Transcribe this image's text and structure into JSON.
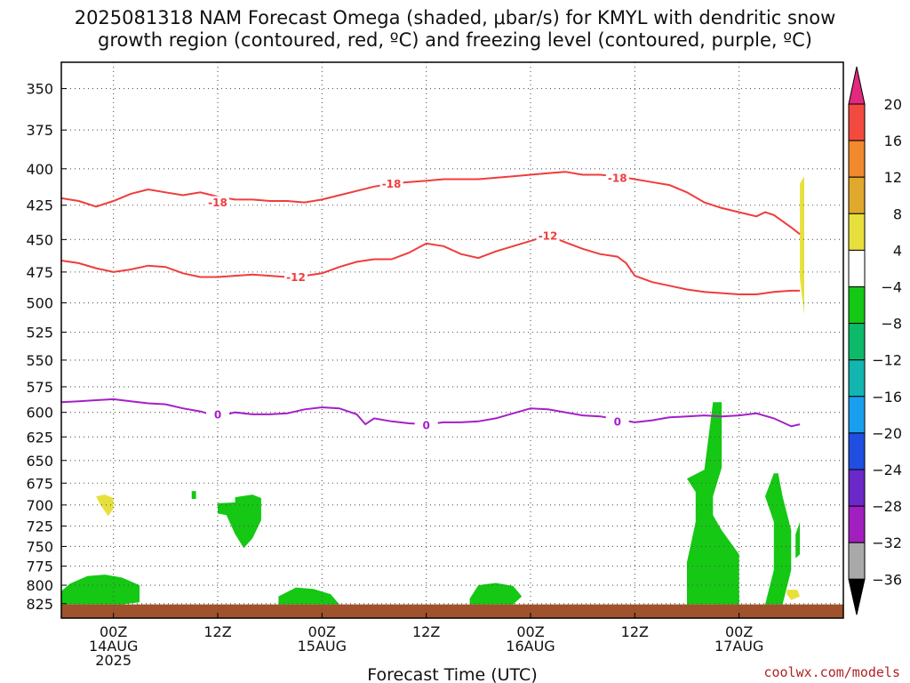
{
  "title": {
    "line1": "2025081318 NAM Forecast Omega (shaded, μbar/s) for KMYL with dendritic snow",
    "line2": "growth region (contoured, red, ºC) and freezing level (contoured, purple, ºC)"
  },
  "chart_data": {
    "type": "time-height",
    "xlabel": "Forecast Time (UTC)",
    "credit": "coolwx.com/models",
    "y_axis": {
      "scale": "log-pressure",
      "inverted": true,
      "ylim": [
        335,
        845
      ],
      "ticks": [
        350,
        375,
        400,
        425,
        450,
        475,
        500,
        525,
        550,
        575,
        600,
        625,
        650,
        675,
        700,
        725,
        750,
        775,
        800,
        825
      ],
      "tick_labels": [
        "350",
        "375",
        "400",
        "425",
        "450",
        "475",
        "500",
        "525",
        "550",
        "575",
        "600",
        "625",
        "650",
        "675",
        "700",
        "725",
        "750",
        "775",
        "800",
        "825"
      ]
    },
    "x_axis": {
      "unit": "forecast hour",
      "xlim": [
        -6,
        84
      ],
      "ticks": [
        {
          "hour": 0,
          "lines": [
            "00Z",
            "14AUG",
            "2025"
          ]
        },
        {
          "hour": 12,
          "lines": [
            "12Z"
          ]
        },
        {
          "hour": 24,
          "lines": [
            "00Z",
            "15AUG"
          ]
        },
        {
          "hour": 36,
          "lines": [
            "12Z"
          ]
        },
        {
          "hour": 48,
          "lines": [
            "00Z",
            "16AUG"
          ]
        },
        {
          "hour": 60,
          "lines": [
            "12Z"
          ]
        },
        {
          "hour": 72,
          "lines": [
            "00Z",
            "17AUG"
          ]
        }
      ]
    },
    "grid": true,
    "colorbar": {
      "levels": [
        20,
        16,
        12,
        8,
        4,
        -4,
        -8,
        -12,
        -16,
        -20,
        -24,
        -28,
        -32,
        -36
      ],
      "labels": [
        "20",
        "16",
        "12",
        "8",
        "4",
        "−4",
        "−8",
        "−12",
        "−16",
        "−20",
        "−24",
        "−28",
        "−32",
        "−36"
      ],
      "colors": [
        "#e3287f",
        "#f24a3f",
        "#f08a2c",
        "#e0a82c",
        "#e7e03c",
        "#ffffff",
        "#14c814",
        "#0dba6a",
        "#12b5b0",
        "#1a9ff0",
        "#1f4fe0",
        "#6a28c8",
        "#a21fbf",
        "#a9a9a9",
        "#000000"
      ]
    },
    "contours": [
      {
        "label": "-18",
        "color": "#f03c3c",
        "points": [
          [
            -6,
            420
          ],
          [
            -4,
            422
          ],
          [
            -2,
            426
          ],
          [
            0,
            422
          ],
          [
            2,
            417
          ],
          [
            4,
            414
          ],
          [
            6,
            416
          ],
          [
            8,
            418
          ],
          [
            10,
            416
          ],
          [
            12,
            419
          ],
          [
            14,
            421
          ],
          [
            16,
            421
          ],
          [
            18,
            422
          ],
          [
            20,
            422
          ],
          [
            22,
            423
          ],
          [
            24,
            421
          ],
          [
            26,
            418
          ],
          [
            28,
            415
          ],
          [
            30,
            412
          ],
          [
            32,
            410
          ],
          [
            34,
            409
          ],
          [
            36,
            408
          ],
          [
            38,
            407
          ],
          [
            40,
            407
          ],
          [
            42,
            407
          ],
          [
            44,
            406
          ],
          [
            46,
            405
          ],
          [
            48,
            404
          ],
          [
            50,
            403
          ],
          [
            52,
            402
          ],
          [
            54,
            404
          ],
          [
            56,
            404
          ],
          [
            58,
            405
          ],
          [
            60,
            407
          ],
          [
            62,
            409
          ],
          [
            64,
            411
          ],
          [
            66,
            416
          ],
          [
            68,
            423
          ],
          [
            70,
            427
          ],
          [
            72,
            430
          ],
          [
            74,
            433
          ],
          [
            75,
            430
          ],
          [
            76,
            432
          ],
          [
            78,
            441
          ],
          [
            79,
            446
          ]
        ]
      },
      {
        "label": "-12",
        "color": "#f03c3c",
        "points": [
          [
            -6,
            466
          ],
          [
            -4,
            468
          ],
          [
            -2,
            472
          ],
          [
            0,
            475
          ],
          [
            2,
            473
          ],
          [
            4,
            470
          ],
          [
            6,
            471
          ],
          [
            8,
            476
          ],
          [
            10,
            479
          ],
          [
            12,
            479
          ],
          [
            14,
            478
          ],
          [
            16,
            477
          ],
          [
            18,
            478
          ],
          [
            20,
            479
          ],
          [
            22,
            478
          ],
          [
            24,
            476
          ],
          [
            26,
            471
          ],
          [
            28,
            467
          ],
          [
            30,
            465
          ],
          [
            32,
            465
          ],
          [
            34,
            460
          ],
          [
            36,
            453
          ],
          [
            38,
            455
          ],
          [
            40,
            461
          ],
          [
            42,
            464
          ],
          [
            44,
            459
          ],
          [
            46,
            455
          ],
          [
            48,
            451
          ],
          [
            50,
            447
          ],
          [
            52,
            452
          ],
          [
            54,
            457
          ],
          [
            56,
            461
          ],
          [
            58,
            463
          ],
          [
            59,
            468
          ],
          [
            60,
            478
          ],
          [
            62,
            483
          ],
          [
            64,
            486
          ],
          [
            66,
            489
          ],
          [
            68,
            491
          ],
          [
            70,
            492
          ],
          [
            72,
            493
          ],
          [
            74,
            493
          ],
          [
            76,
            491
          ],
          [
            78,
            490
          ],
          [
            79,
            490
          ]
        ]
      },
      {
        "label": "0",
        "color": "#a51fc8",
        "points": [
          [
            -6,
            590
          ],
          [
            -4,
            589
          ],
          [
            -2,
            588
          ],
          [
            0,
            587
          ],
          [
            2,
            589
          ],
          [
            4,
            591
          ],
          [
            6,
            592
          ],
          [
            8,
            596
          ],
          [
            10,
            599
          ],
          [
            12,
            604
          ],
          [
            14,
            600
          ],
          [
            16,
            602
          ],
          [
            18,
            602
          ],
          [
            20,
            601
          ],
          [
            22,
            597
          ],
          [
            24,
            595
          ],
          [
            26,
            596
          ],
          [
            28,
            602
          ],
          [
            29,
            612
          ],
          [
            30,
            606
          ],
          [
            32,
            609
          ],
          [
            34,
            611
          ],
          [
            36,
            612
          ],
          [
            38,
            610
          ],
          [
            40,
            610
          ],
          [
            42,
            609
          ],
          [
            44,
            606
          ],
          [
            46,
            601
          ],
          [
            48,
            596
          ],
          [
            50,
            597
          ],
          [
            52,
            600
          ],
          [
            54,
            603
          ],
          [
            56,
            604
          ],
          [
            58,
            607
          ],
          [
            60,
            610
          ],
          [
            62,
            608
          ],
          [
            64,
            605
          ],
          [
            66,
            604
          ],
          [
            68,
            603
          ],
          [
            70,
            604
          ],
          [
            72,
            603
          ],
          [
            74,
            601
          ],
          [
            76,
            606
          ],
          [
            78,
            614
          ],
          [
            79,
            612
          ]
        ]
      }
    ],
    "shaded_regions": [
      {
        "color": "#14c814",
        "points": [
          [
            -6,
            808
          ],
          [
            -5,
            798
          ],
          [
            -3,
            788
          ],
          [
            -1,
            786
          ],
          [
            1,
            790
          ],
          [
            3,
            800
          ],
          [
            3,
            823
          ],
          [
            1,
            826
          ],
          [
            -3,
            826
          ],
          [
            -6,
            826
          ]
        ]
      },
      {
        "color": "#14c814",
        "points": [
          [
            14,
            691
          ],
          [
            16,
            688
          ],
          [
            17,
            692
          ],
          [
            17,
            718
          ],
          [
            16,
            740
          ],
          [
            15,
            752
          ],
          [
            14,
            735
          ],
          [
            13,
            712
          ],
          [
            12,
            710
          ],
          [
            12,
            698
          ],
          [
            14,
            697
          ]
        ]
      },
      {
        "color": "#14c814",
        "points": [
          [
            9,
            684
          ],
          [
            9.5,
            684
          ],
          [
            9.5,
            693
          ],
          [
            9,
            693
          ]
        ]
      },
      {
        "color": "#14c814",
        "points": [
          [
            19,
            815
          ],
          [
            21,
            803
          ],
          [
            23,
            805
          ],
          [
            25,
            812
          ],
          [
            26,
            826
          ],
          [
            19,
            826
          ]
        ]
      },
      {
        "color": "#14c814",
        "points": [
          [
            41,
            818
          ],
          [
            42,
            800
          ],
          [
            44,
            797
          ],
          [
            46,
            801
          ],
          [
            47,
            815
          ],
          [
            46,
            826
          ],
          [
            41,
            826
          ]
        ]
      },
      {
        "color": "#14c814",
        "points": [
          [
            66,
            670
          ],
          [
            68,
            660
          ],
          [
            69,
            590
          ],
          [
            70,
            590
          ],
          [
            70,
            658
          ],
          [
            69,
            690
          ],
          [
            69,
            712
          ],
          [
            70,
            730
          ],
          [
            72,
            760
          ],
          [
            72,
            800
          ],
          [
            72,
            826
          ],
          [
            66,
            826
          ],
          [
            66,
            770
          ],
          [
            67,
            720
          ],
          [
            67,
            685
          ]
        ]
      },
      {
        "color": "#14c814",
        "points": [
          [
            71,
            810
          ],
          [
            72,
            810
          ],
          [
            72,
            826
          ],
          [
            71,
            826
          ]
        ]
      },
      {
        "color": "#14c814",
        "points": [
          [
            76,
            664
          ],
          [
            76.5,
            664
          ],
          [
            77,
            690
          ],
          [
            78,
            730
          ],
          [
            78,
            780
          ],
          [
            77,
            826
          ],
          [
            75,
            826
          ],
          [
            76,
            780
          ],
          [
            76,
            720
          ],
          [
            75,
            690
          ]
        ]
      },
      {
        "color": "#14c814",
        "points": [
          [
            78.5,
            735
          ],
          [
            79,
            720
          ],
          [
            79,
            760
          ],
          [
            78.5,
            765
          ]
        ]
      },
      {
        "color": "#e7e03c",
        "points": [
          [
            -1,
            688
          ],
          [
            0,
            692
          ],
          [
            0,
            704
          ],
          [
            -0.6,
            713
          ],
          [
            -1.5,
            700
          ],
          [
            -2,
            690
          ]
        ]
      },
      {
        "color": "#e7e03c",
        "points": [
          [
            77.5,
            806
          ],
          [
            78.7,
            806
          ],
          [
            79,
            815
          ],
          [
            78,
            820
          ],
          [
            77.5,
            812
          ]
        ]
      },
      {
        "color": "#e7e03c",
        "points": [
          [
            79,
            410
          ],
          [
            79.5,
            405
          ],
          [
            79.5,
            510
          ],
          [
            79,
            480
          ]
        ]
      }
    ],
    "terrain": {
      "color": "#a0522d",
      "pressure": 826
    }
  }
}
